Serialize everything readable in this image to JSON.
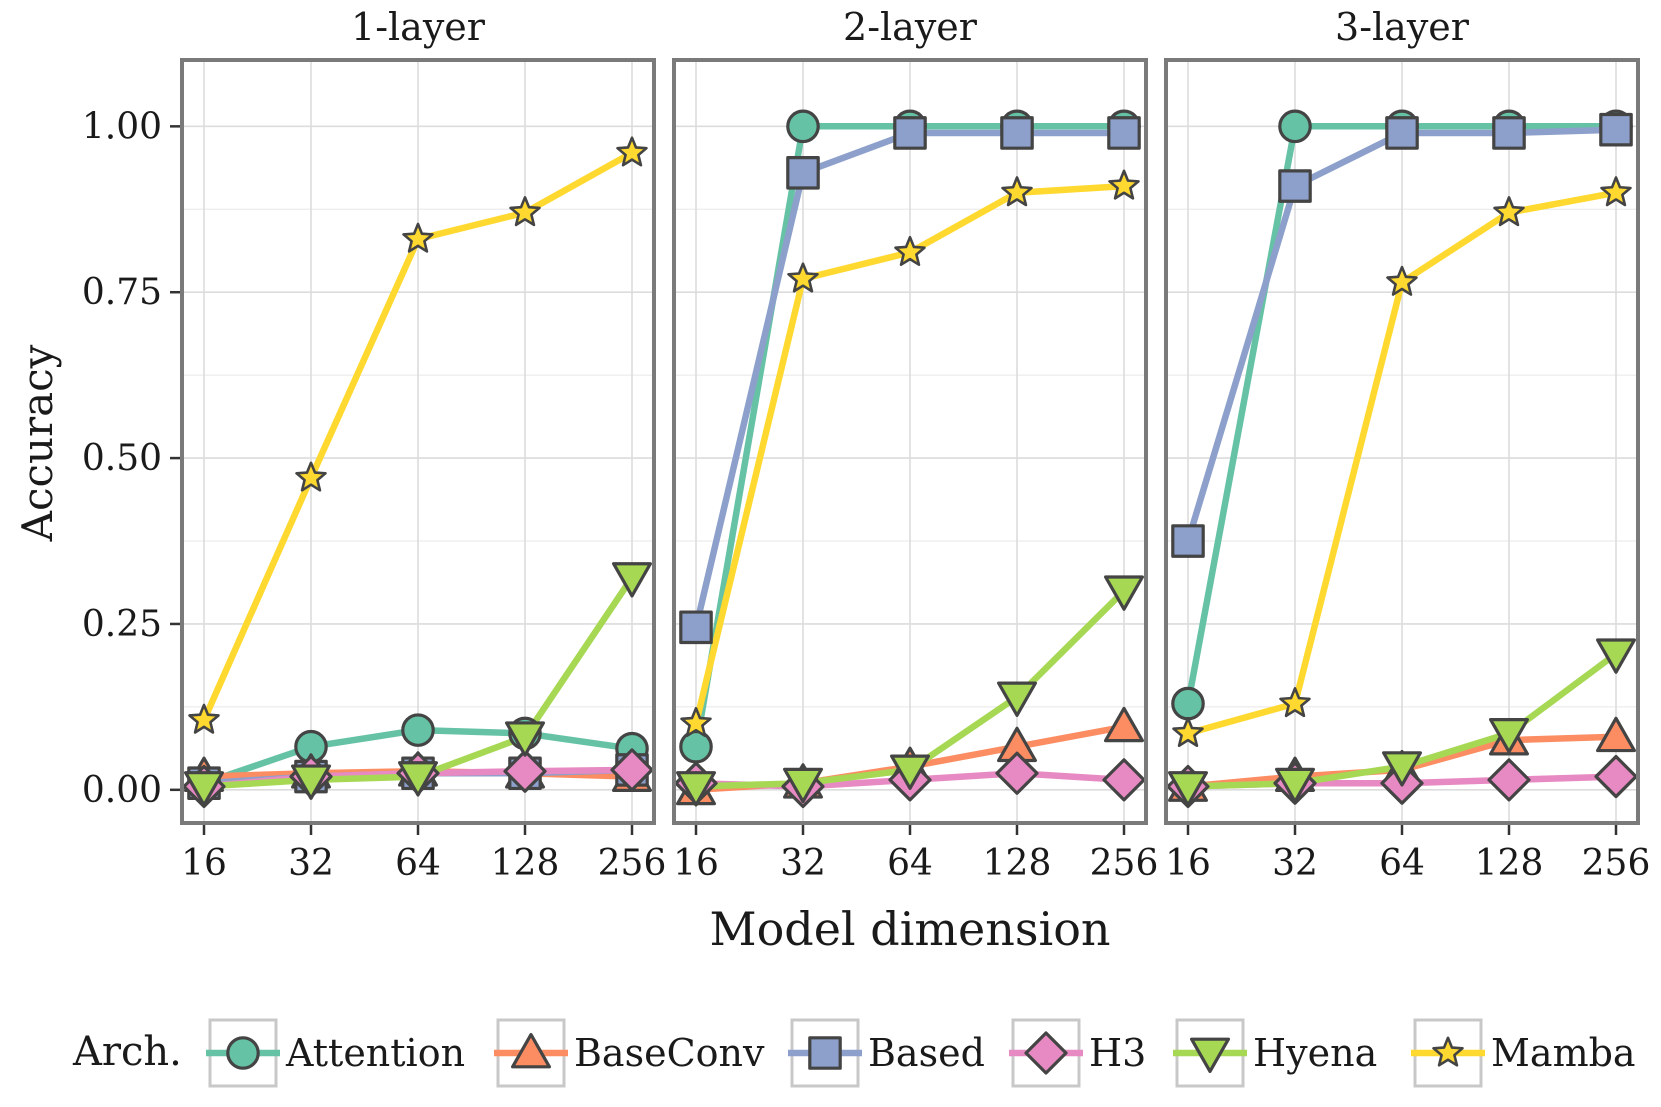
{
  "chart_data": {
    "type": "line",
    "xlabel": "Model dimension",
    "ylabel": "Accuracy",
    "x": [
      "16",
      "32",
      "64",
      "128",
      "256"
    ],
    "xscale": "log2 (categorical)",
    "ylim": [
      -0.05,
      1.1
    ],
    "yticks": [
      "0.00",
      "0.25",
      "0.50",
      "0.75",
      "1.00"
    ],
    "grid": true,
    "legend": {
      "title": "Arch.",
      "placement": "bottom",
      "entries": [
        "Attention",
        "BaseConv",
        "Based",
        "H3",
        "Hyena",
        "Mamba"
      ]
    },
    "series_style": {
      "Attention": {
        "color": "#66c2a5",
        "marker": "circle"
      },
      "BaseConv": {
        "color": "#fc8d62",
        "marker": "triangle-up"
      },
      "Based": {
        "color": "#8da0cb",
        "marker": "square"
      },
      "H3": {
        "color": "#e78ac3",
        "marker": "diamond"
      },
      "Hyena": {
        "color": "#a6d854",
        "marker": "triangle-down"
      },
      "Mamba": {
        "color": "#ffd92f",
        "marker": "star"
      }
    },
    "panels": [
      {
        "title": "1-layer",
        "series": [
          {
            "name": "Attention",
            "values": [
              0.01,
              0.065,
              0.09,
              0.085,
              0.062
            ]
          },
          {
            "name": "BaseConv",
            "values": [
              0.02,
              0.025,
              0.028,
              0.025,
              0.02
            ]
          },
          {
            "name": "Based",
            "values": [
              0.01,
              0.02,
              0.025,
              0.025,
              0.03
            ]
          },
          {
            "name": "H3",
            "values": [
              0.005,
              0.02,
              0.025,
              0.028,
              0.03
            ]
          },
          {
            "name": "Hyena",
            "values": [
              0.005,
              0.015,
              0.02,
              0.08,
              0.32
            ]
          },
          {
            "name": "Mamba",
            "values": [
              0.105,
              0.47,
              0.83,
              0.87,
              0.96
            ]
          }
        ]
      },
      {
        "title": "2-layer",
        "series": [
          {
            "name": "Attention",
            "values": [
              0.065,
              1.0,
              1.0,
              1.0,
              1.0
            ]
          },
          {
            "name": "BaseConv",
            "values": [
              0.0,
              0.01,
              0.035,
              0.065,
              0.095
            ]
          },
          {
            "name": "Based",
            "values": [
              0.245,
              0.93,
              0.99,
              0.99,
              0.99
            ]
          },
          {
            "name": "H3",
            "values": [
              0.01,
              0.005,
              0.015,
              0.025,
              0.015
            ]
          },
          {
            "name": "Hyena",
            "values": [
              0.005,
              0.01,
              0.03,
              0.14,
              0.3
            ]
          },
          {
            "name": "Mamba",
            "values": [
              0.1,
              0.77,
              0.81,
              0.9,
              0.91
            ]
          }
        ]
      },
      {
        "title": "3-layer",
        "series": [
          {
            "name": "Attention",
            "values": [
              0.13,
              1.0,
              1.0,
              1.0,
              1.0
            ]
          },
          {
            "name": "BaseConv",
            "values": [
              0.005,
              0.02,
              0.03,
              0.075,
              0.08
            ]
          },
          {
            "name": "Based",
            "values": [
              0.375,
              0.91,
              0.99,
              0.99,
              0.995
            ]
          },
          {
            "name": "H3",
            "values": [
              0.005,
              0.01,
              0.01,
              0.015,
              0.02
            ]
          },
          {
            "name": "Hyena",
            "values": [
              0.005,
              0.01,
              0.035,
              0.085,
              0.205
            ]
          },
          {
            "name": "Mamba",
            "values": [
              0.085,
              0.13,
              0.765,
              0.87,
              0.9
            ]
          }
        ]
      }
    ]
  }
}
